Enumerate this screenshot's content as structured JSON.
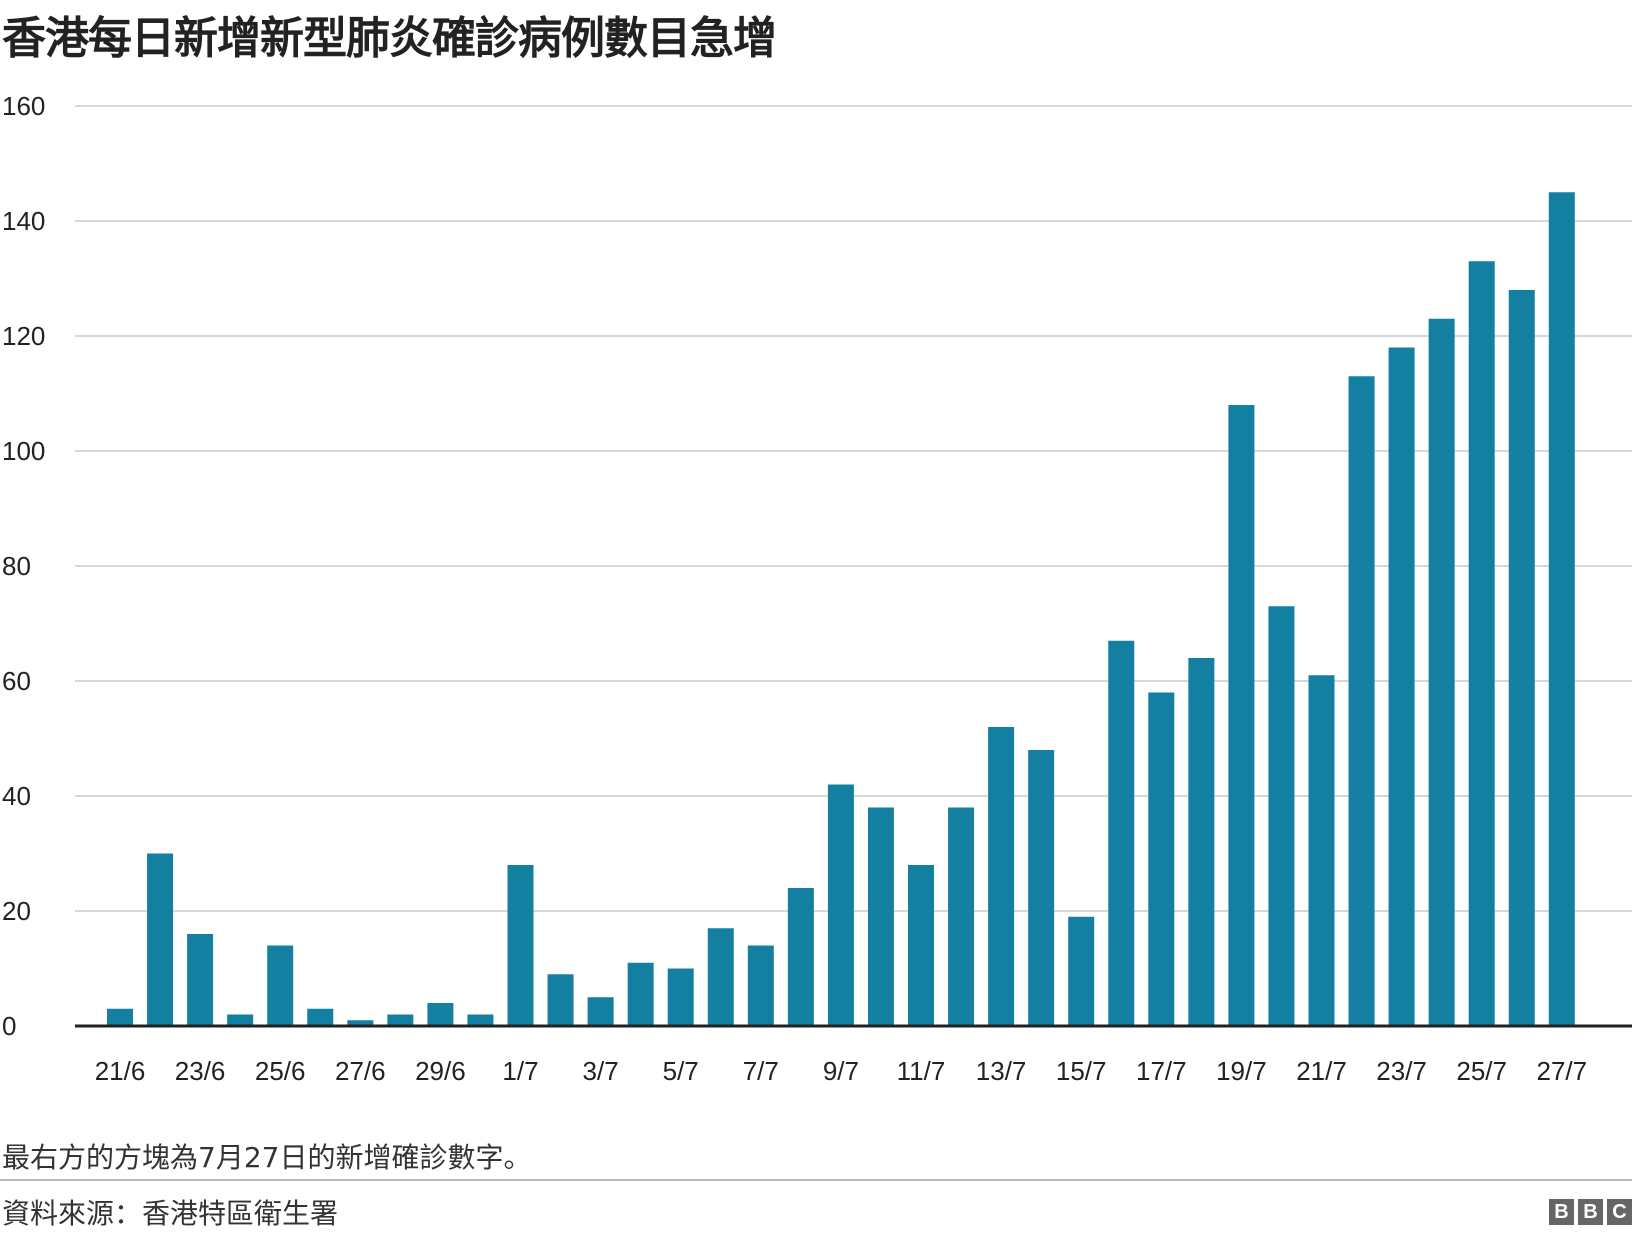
{
  "title": "香港每日新增新型肺炎確診病例數目急增",
  "note": "最右方的方塊為7月27日的新增確診數字。",
  "source": "資料來源：香港特區衛生署",
  "logo": [
    "B",
    "B",
    "C"
  ],
  "colors": {
    "bar": "#1380a1",
    "grid": "#cbcbcb",
    "axis": "#222222",
    "text": "#222222"
  },
  "chart_data": {
    "type": "bar",
    "categories": [
      "21/6",
      "22/6",
      "23/6",
      "24/6",
      "25/6",
      "26/6",
      "27/6",
      "28/6",
      "29/6",
      "30/6",
      "1/7",
      "2/7",
      "3/7",
      "4/7",
      "5/7",
      "6/7",
      "7/7",
      "8/7",
      "9/7",
      "10/7",
      "11/7",
      "12/7",
      "13/7",
      "14/7",
      "15/7",
      "16/7",
      "17/7",
      "18/7",
      "19/7",
      "20/7",
      "21/7",
      "22/7",
      "23/7",
      "24/7",
      "25/7",
      "26/7",
      "27/7"
    ],
    "tick_labels": [
      "21/6",
      "23/6",
      "25/6",
      "27/6",
      "29/6",
      "1/7",
      "3/7",
      "5/7",
      "7/7",
      "9/7",
      "11/7",
      "13/7",
      "15/7",
      "17/7",
      "19/7",
      "21/7",
      "23/7",
      "25/7",
      "27/7"
    ],
    "values": [
      3,
      30,
      16,
      2,
      14,
      3,
      1,
      2,
      4,
      2,
      28,
      9,
      5,
      11,
      10,
      17,
      14,
      24,
      42,
      38,
      28,
      38,
      52,
      48,
      19,
      67,
      58,
      64,
      108,
      73,
      61,
      113,
      118,
      123,
      133,
      128,
      145
    ],
    "ylim": [
      0,
      160
    ],
    "yticks": [
      0,
      20,
      40,
      60,
      80,
      100,
      120,
      140,
      160
    ],
    "grid": true
  }
}
